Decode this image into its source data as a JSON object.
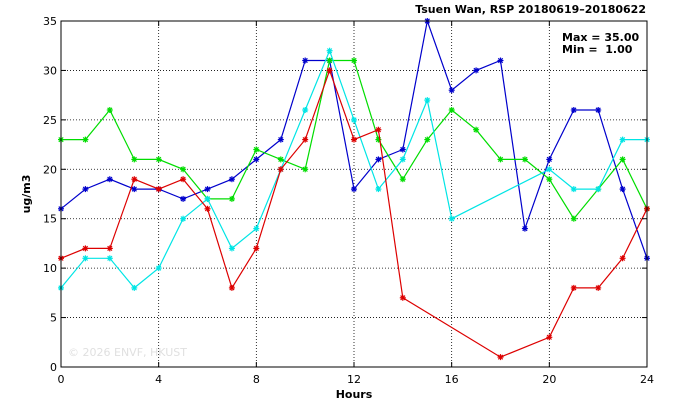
{
  "chart_data": {
    "type": "line",
    "title": "Tsuen Wan, RSP 20180619–20180622",
    "xlabel": "Hours",
    "ylabel": "ug/m3",
    "xlim": [
      0,
      24
    ],
    "ylim": [
      0,
      35
    ],
    "xticks": [
      0,
      4,
      8,
      12,
      16,
      20,
      24
    ],
    "xtick_labels": [
      "0",
      "4",
      "8",
      "12",
      "16",
      "20",
      "24"
    ],
    "yticks": [
      0,
      5,
      10,
      15,
      20,
      25,
      30,
      35
    ],
    "ytick_labels": [
      "0",
      "5",
      "10",
      "15",
      "20",
      "25",
      "30",
      "35"
    ],
    "grid": true,
    "stats": {
      "max_label": "Max = 35.00",
      "min_label": "Min =  1.00"
    },
    "watermark": "© 2026  ENVF, HKUST",
    "x": [
      0,
      1,
      2,
      3,
      4,
      5,
      6,
      7,
      8,
      9,
      10,
      11,
      12,
      13,
      14,
      15,
      16,
      17,
      18,
      19,
      20,
      21,
      22,
      23,
      24
    ],
    "series": [
      {
        "color": "#0000cc",
        "values": [
          16,
          18,
          19,
          18,
          18,
          17,
          18,
          19,
          21,
          23,
          31,
          31,
          18,
          21,
          22,
          35,
          28,
          30,
          31,
          14,
          21,
          26,
          26,
          18,
          11
        ]
      },
      {
        "color": "#00dd00",
        "values": [
          23,
          23,
          26,
          21,
          21,
          20,
          17,
          17,
          22,
          21,
          20,
          31,
          31,
          23,
          19,
          23,
          26,
          24,
          21,
          21,
          19,
          15,
          18,
          21,
          16
        ]
      },
      {
        "color": "#00e5e5",
        "values": [
          8,
          11,
          11,
          8,
          10,
          15,
          17,
          12,
          14,
          20,
          26,
          32,
          25,
          18,
          21,
          27,
          15,
          null,
          null,
          null,
          20,
          18,
          18,
          23,
          23
        ]
      },
      {
        "color": "#dd0000",
        "values": [
          11,
          12,
          12,
          19,
          18,
          19,
          16,
          8,
          12,
          20,
          23,
          30,
          23,
          24,
          7,
          null,
          null,
          null,
          1,
          null,
          3,
          8,
          8,
          11,
          16
        ]
      }
    ]
  }
}
